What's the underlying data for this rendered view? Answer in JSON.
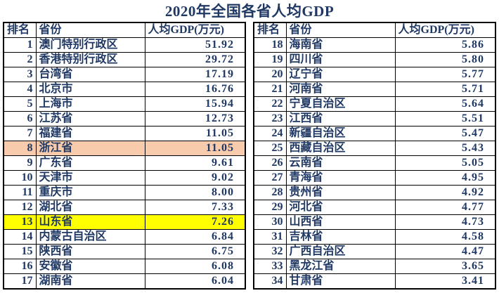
{
  "title": "2020年全国各省人均GDP",
  "columns": {
    "rank": "排名",
    "province": "省份",
    "gdp": "人均GDP(万元)"
  },
  "colors": {
    "text_navy": "#1F3864",
    "border": "#000000",
    "background": "#FFFFFF",
    "highlights": {
      "peach": "#F8CBAD",
      "yellow": "#FFFF00"
    }
  },
  "tables": [
    {
      "rows": [
        {
          "rank": "1",
          "province": "澳门特别行政区",
          "gdp": "51.92",
          "highlight": null
        },
        {
          "rank": "2",
          "province": "香港特别行政区",
          "gdp": "29.72",
          "highlight": null
        },
        {
          "rank": "3",
          "province": "台湾省",
          "gdp": "17.19",
          "highlight": null
        },
        {
          "rank": "4",
          "province": "北京市",
          "gdp": "16.76",
          "highlight": null
        },
        {
          "rank": "5",
          "province": "上海市",
          "gdp": "15.94",
          "highlight": null
        },
        {
          "rank": "6",
          "province": "江苏省",
          "gdp": "12.73",
          "highlight": null
        },
        {
          "rank": "7",
          "province": "福建省",
          "gdp": "11.05",
          "highlight": null
        },
        {
          "rank": "8",
          "province": "浙江省",
          "gdp": "11.05",
          "highlight": "peach"
        },
        {
          "rank": "9",
          "province": "广东省",
          "gdp": "9.61",
          "highlight": null
        },
        {
          "rank": "10",
          "province": "天津市",
          "gdp": "9.02",
          "highlight": null
        },
        {
          "rank": "11",
          "province": "重庆市",
          "gdp": "8.00",
          "highlight": null
        },
        {
          "rank": "12",
          "province": "湖北省",
          "gdp": "7.33",
          "highlight": null
        },
        {
          "rank": "13",
          "province": "山东省",
          "gdp": "7.26",
          "highlight": "yellow"
        },
        {
          "rank": "14",
          "province": "内蒙古自治区",
          "gdp": "6.84",
          "highlight": null
        },
        {
          "rank": "15",
          "province": "陕西省",
          "gdp": "6.75",
          "highlight": null
        },
        {
          "rank": "16",
          "province": "安徽省",
          "gdp": "6.08",
          "highlight": null
        },
        {
          "rank": "17",
          "province": "湖南省",
          "gdp": "6.04",
          "highlight": null
        }
      ]
    },
    {
      "rows": [
        {
          "rank": "18",
          "province": "海南省",
          "gdp": "5.86",
          "highlight": null
        },
        {
          "rank": "19",
          "province": "四川省",
          "gdp": "5.80",
          "highlight": null
        },
        {
          "rank": "20",
          "province": "辽宁省",
          "gdp": "5.77",
          "highlight": null
        },
        {
          "rank": "21",
          "province": "河南省",
          "gdp": "5.71",
          "highlight": null
        },
        {
          "rank": "22",
          "province": "宁夏自治区",
          "gdp": "5.64",
          "highlight": null
        },
        {
          "rank": "23",
          "province": "江西省",
          "gdp": "5.51",
          "highlight": null
        },
        {
          "rank": "24",
          "province": "新疆自治区",
          "gdp": "5.47",
          "highlight": null
        },
        {
          "rank": "25",
          "province": "西藏自治区",
          "gdp": "5.43",
          "highlight": null
        },
        {
          "rank": "26",
          "province": "云南省",
          "gdp": "5.05",
          "highlight": null
        },
        {
          "rank": "27",
          "province": "青海省",
          "gdp": "4.95",
          "highlight": null
        },
        {
          "rank": "28",
          "province": "贵州省",
          "gdp": "4.92",
          "highlight": null
        },
        {
          "rank": "29",
          "province": "河北省",
          "gdp": "4.77",
          "highlight": null
        },
        {
          "rank": "30",
          "province": "山西省",
          "gdp": "4.73",
          "highlight": null
        },
        {
          "rank": "31",
          "province": "吉林省",
          "gdp": "4.58",
          "highlight": null
        },
        {
          "rank": "32",
          "province": "广西自治区",
          "gdp": "4.47",
          "highlight": null
        },
        {
          "rank": "33",
          "province": "黑龙江省",
          "gdp": "3.65",
          "highlight": null
        },
        {
          "rank": "34",
          "province": "甘肃省",
          "gdp": "3.41",
          "highlight": null
        }
      ]
    }
  ],
  "chart_data": {
    "type": "table",
    "title": "2020年全国各省人均GDP",
    "columns": [
      "排名",
      "省份",
      "人均GDP(万元)"
    ],
    "rows": [
      [
        1,
        "澳门特别行政区",
        51.92
      ],
      [
        2,
        "香港特别行政区",
        29.72
      ],
      [
        3,
        "台湾省",
        17.19
      ],
      [
        4,
        "北京市",
        16.76
      ],
      [
        5,
        "上海市",
        15.94
      ],
      [
        6,
        "江苏省",
        12.73
      ],
      [
        7,
        "福建省",
        11.05
      ],
      [
        8,
        "浙江省",
        11.05
      ],
      [
        9,
        "广东省",
        9.61
      ],
      [
        10,
        "天津市",
        9.02
      ],
      [
        11,
        "重庆市",
        8.0
      ],
      [
        12,
        "湖北省",
        7.33
      ],
      [
        13,
        "山东省",
        7.26
      ],
      [
        14,
        "内蒙古自治区",
        6.84
      ],
      [
        15,
        "陕西省",
        6.75
      ],
      [
        16,
        "安徽省",
        6.08
      ],
      [
        17,
        "湖南省",
        6.04
      ],
      [
        18,
        "海南省",
        5.86
      ],
      [
        19,
        "四川省",
        5.8
      ],
      [
        20,
        "辽宁省",
        5.77
      ],
      [
        21,
        "河南省",
        5.71
      ],
      [
        22,
        "宁夏自治区",
        5.64
      ],
      [
        23,
        "江西省",
        5.51
      ],
      [
        24,
        "新疆自治区",
        5.47
      ],
      [
        25,
        "西藏自治区",
        5.43
      ],
      [
        26,
        "云南省",
        5.05
      ],
      [
        27,
        "青海省",
        4.95
      ],
      [
        28,
        "贵州省",
        4.92
      ],
      [
        29,
        "河北省",
        4.77
      ],
      [
        30,
        "山西省",
        4.73
      ],
      [
        31,
        "吉林省",
        4.58
      ],
      [
        32,
        "广西自治区",
        4.47
      ],
      [
        33,
        "黑龙江省",
        3.65
      ],
      [
        34,
        "甘肃省",
        3.41
      ]
    ],
    "highlighted_rows": [
      {
        "rank": 8,
        "province": "浙江省",
        "color": "#F8CBAD"
      },
      {
        "rank": 13,
        "province": "山东省",
        "color": "#FFFF00"
      }
    ],
    "layout": "two side-by-side panels: ranks 1-17 left, ranks 18-34 right"
  }
}
